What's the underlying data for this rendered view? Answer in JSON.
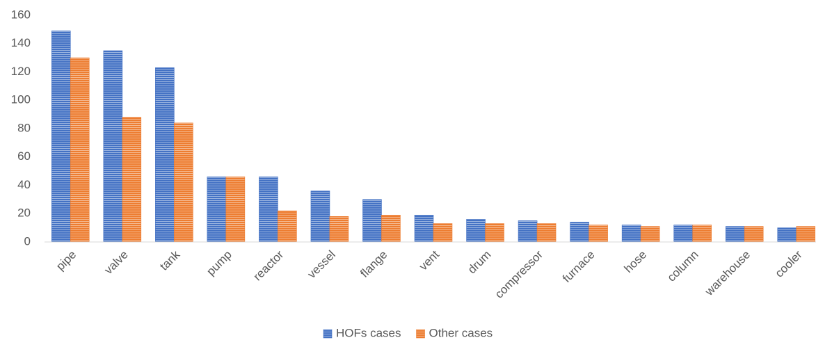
{
  "chart_data": {
    "type": "bar",
    "categories": [
      "pipe",
      "valve",
      "tank",
      "pump",
      "reactor",
      "vessel",
      "flange",
      "vent",
      "drum",
      "compressor",
      "furnace",
      "hose",
      "column",
      "warehouse",
      "cooler"
    ],
    "series": [
      {
        "name": "HOFs cases",
        "color": "#4472c4",
        "values": [
          149,
          135,
          123,
          46,
          46,
          36,
          30,
          19,
          16,
          15,
          14,
          12,
          12,
          11,
          10
        ]
      },
      {
        "name": "Other cases",
        "color": "#ed7d31",
        "values": [
          130,
          88,
          84,
          46,
          22,
          18,
          19,
          13,
          13,
          13,
          12,
          11,
          12,
          11,
          11
        ]
      }
    ],
    "ylim": [
      0,
      160
    ],
    "yticks": [
      0,
      20,
      40,
      60,
      80,
      100,
      120,
      140,
      160
    ],
    "grid": false,
    "legend": "bottom"
  }
}
